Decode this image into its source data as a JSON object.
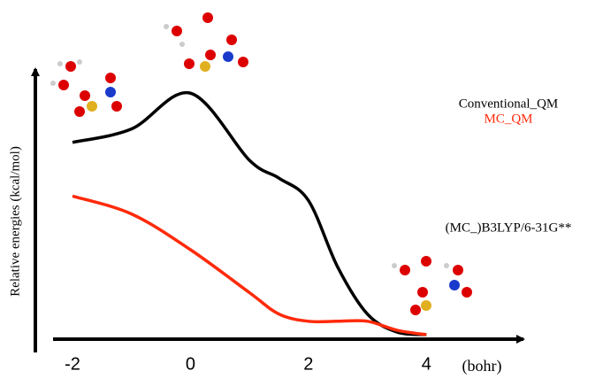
{
  "chart_data": {
    "type": "line",
    "x_label": "(bohr)",
    "y_label": "Relative energies (kcal/mol)",
    "x": [
      -2,
      -1,
      0,
      1,
      1.5,
      2,
      2.5,
      3,
      3.5,
      4
    ],
    "series": [
      {
        "name": "Conventional_QM",
        "color": "#000000",
        "values": [
          22,
          23.5,
          27.5,
          20,
          18,
          15.5,
          8,
          2.8,
          0.8,
          0.5
        ]
      },
      {
        "name": "MC_QM",
        "color": "#ff2a0a",
        "values": [
          16,
          14,
          10,
          5.2,
          2.8,
          2,
          2,
          2,
          1,
          0.5
        ]
      }
    ],
    "annotations": [
      "(MC_)B3LYP/6-31G**"
    ],
    "xlim": [
      -2.3,
      5.6
    ],
    "xticks": [
      -2,
      0,
      2,
      4
    ],
    "ylim": [
      0,
      30
    ],
    "grid": false
  }
}
